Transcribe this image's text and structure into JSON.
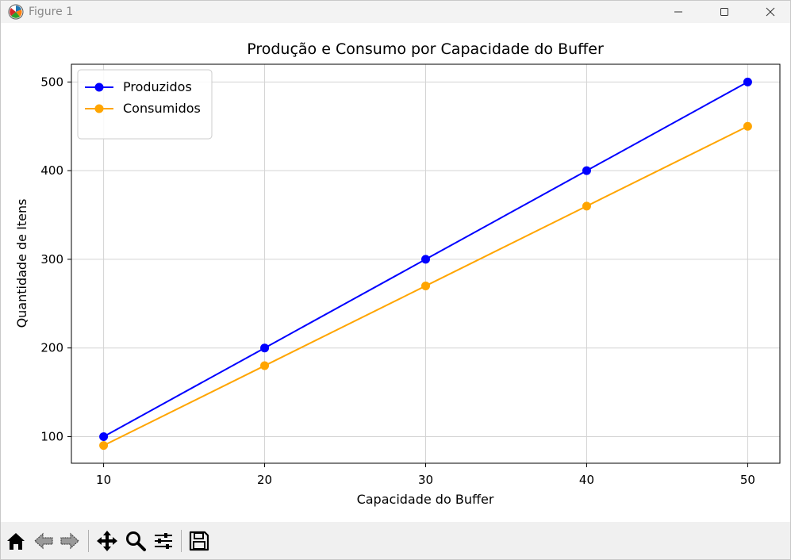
{
  "window": {
    "title": "Figure 1"
  },
  "toolbar": {
    "buttons": [
      "home-icon",
      "back-icon",
      "forward-icon",
      "pan-icon",
      "zoom-icon",
      "configure-subplots-icon",
      "save-icon"
    ]
  },
  "chart_data": {
    "type": "line",
    "title": "Produção e Consumo por Capacidade do Buffer",
    "xlabel": "Capacidade do Buffer",
    "ylabel": "Quantidade de Itens",
    "x": [
      10,
      20,
      30,
      40,
      50
    ],
    "xticks": [
      "10",
      "20",
      "30",
      "40",
      "50"
    ],
    "yticks": [
      "100",
      "200",
      "300",
      "400",
      "500"
    ],
    "xlim": [
      8,
      52
    ],
    "ylim": [
      70,
      520
    ],
    "grid": true,
    "legend_position": "top-left",
    "series": [
      {
        "name": "Produzidos",
        "values": [
          100,
          200,
          300,
          400,
          500
        ],
        "color": "#0000ff"
      },
      {
        "name": "Consumidos",
        "values": [
          90,
          180,
          270,
          360,
          450
        ],
        "color": "#ffa500"
      }
    ]
  }
}
